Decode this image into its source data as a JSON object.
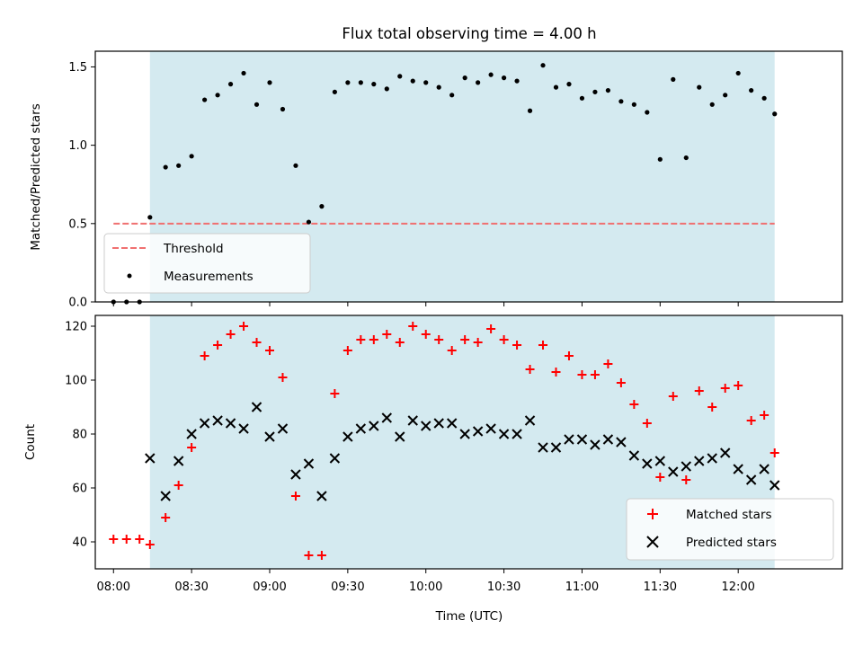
{
  "chart_data": [
    {
      "type": "scatter",
      "title": "Flux total observing time = 4.00 h",
      "xlabel": "",
      "ylabel": "Matched/Predicted stars",
      "xlim": [
        "07:53",
        "12:40"
      ],
      "ylim": [
        0,
        1.6
      ],
      "yticks": [
        0.0,
        0.5,
        1.0,
        1.5
      ],
      "ytick_labels": [
        "0.0",
        "0.5",
        "1.0",
        "1.5"
      ],
      "shaded_region": {
        "x_start": "08:14",
        "x_end": "12:14",
        "color": "#d4eaf0"
      },
      "grid": false,
      "legend_position": "lower-left",
      "series": [
        {
          "name": "Threshold",
          "style": "dashed-line",
          "color": "#f07070",
          "x": [
            "08:00",
            "12:14"
          ],
          "y": [
            0.5,
            0.5
          ]
        },
        {
          "name": "Measurements",
          "style": "dot",
          "color": "#000000",
          "x": [
            "08:00",
            "08:05",
            "08:10",
            "08:14",
            "08:20",
            "08:25",
            "08:30",
            "08:35",
            "08:40",
            "08:45",
            "08:50",
            "08:55",
            "09:00",
            "09:05",
            "09:10",
            "09:15",
            "09:20",
            "09:25",
            "09:30",
            "09:35",
            "09:40",
            "09:45",
            "09:50",
            "09:55",
            "10:00",
            "10:05",
            "10:10",
            "10:15",
            "10:20",
            "10:25",
            "10:30",
            "10:35",
            "10:40",
            "10:45",
            "10:50",
            "10:55",
            "11:00",
            "11:05",
            "11:10",
            "11:15",
            "11:20",
            "11:25",
            "11:30",
            "11:35",
            "11:40",
            "11:45",
            "11:50",
            "11:55",
            "12:00",
            "12:05",
            "12:10",
            "12:14"
          ],
          "y": [
            0.0,
            0.0,
            0.0,
            0.54,
            0.86,
            0.87,
            0.93,
            1.29,
            1.32,
            1.39,
            1.46,
            1.26,
            1.4,
            1.23,
            0.87,
            0.51,
            0.61,
            1.34,
            1.4,
            1.4,
            1.39,
            1.36,
            1.44,
            1.41,
            1.4,
            1.37,
            1.32,
            1.43,
            1.4,
            1.45,
            1.43,
            1.41,
            1.22,
            1.51,
            1.37,
            1.39,
            1.3,
            1.34,
            1.35,
            1.28,
            1.26,
            1.21,
            0.91,
            1.42,
            0.92,
            1.37,
            1.26,
            1.32,
            1.46,
            1.35,
            1.3,
            1.2
          ]
        }
      ]
    },
    {
      "type": "scatter",
      "title": "",
      "xlabel": "Time (UTC)",
      "ylabel": "Count",
      "xlim": [
        "07:53",
        "12:40"
      ],
      "xticks": [
        "08:00",
        "08:30",
        "09:00",
        "09:30",
        "10:00",
        "10:30",
        "11:00",
        "11:30",
        "12:00"
      ],
      "ylim": [
        30,
        124
      ],
      "yticks": [
        40,
        60,
        80,
        100,
        120
      ],
      "shaded_region": {
        "x_start": "08:14",
        "x_end": "12:14",
        "color": "#d4eaf0"
      },
      "grid": false,
      "legend_position": "lower-right",
      "series": [
        {
          "name": "Matched stars",
          "marker": "plus",
          "color": "#ff0000",
          "x": [
            "08:00",
            "08:05",
            "08:10",
            "08:14",
            "08:20",
            "08:25",
            "08:30",
            "08:35",
            "08:40",
            "08:45",
            "08:50",
            "08:55",
            "09:00",
            "09:05",
            "09:10",
            "09:15",
            "09:20",
            "09:25",
            "09:30",
            "09:35",
            "09:40",
            "09:45",
            "09:50",
            "09:55",
            "10:00",
            "10:05",
            "10:10",
            "10:15",
            "10:20",
            "10:25",
            "10:30",
            "10:35",
            "10:40",
            "10:45",
            "10:50",
            "10:55",
            "11:00",
            "11:05",
            "11:10",
            "11:15",
            "11:20",
            "11:25",
            "11:30",
            "11:35",
            "11:40",
            "11:45",
            "11:50",
            "11:55",
            "12:00",
            "12:05",
            "12:10",
            "12:14"
          ],
          "y": [
            41,
            41,
            41,
            39,
            49,
            61,
            75,
            109,
            113,
            117,
            120,
            114,
            111,
            101,
            57,
            35,
            35,
            95,
            111,
            115,
            115,
            117,
            114,
            120,
            117,
            115,
            111,
            115,
            114,
            119,
            115,
            113,
            104,
            113,
            103,
            109,
            102,
            102,
            106,
            99,
            91,
            84,
            64,
            94,
            63,
            96,
            90,
            97,
            98,
            85,
            87,
            73
          ]
        },
        {
          "name": "Predicted stars",
          "marker": "x",
          "color": "#000000",
          "x": [
            "08:14",
            "08:20",
            "08:25",
            "08:30",
            "08:35",
            "08:40",
            "08:45",
            "08:50",
            "08:55",
            "09:00",
            "09:05",
            "09:10",
            "09:15",
            "09:20",
            "09:25",
            "09:30",
            "09:35",
            "09:40",
            "09:45",
            "09:50",
            "09:55",
            "10:00",
            "10:05",
            "10:10",
            "10:15",
            "10:20",
            "10:25",
            "10:30",
            "10:35",
            "10:40",
            "10:45",
            "10:50",
            "10:55",
            "11:00",
            "11:05",
            "11:10",
            "11:15",
            "11:20",
            "11:25",
            "11:30",
            "11:35",
            "11:40",
            "11:45",
            "11:50",
            "11:55",
            "12:00",
            "12:05",
            "12:10",
            "12:14"
          ],
          "y": [
            71,
            57,
            70,
            80,
            84,
            85,
            84,
            82,
            90,
            79,
            82,
            65,
            69,
            57,
            71,
            79,
            82,
            83,
            86,
            79,
            85,
            83,
            84,
            84,
            80,
            81,
            82,
            80,
            80,
            85,
            75,
            75,
            78,
            78,
            76,
            78,
            77,
            72,
            69,
            70,
            66,
            68,
            70,
            71,
            73,
            67,
            63,
            67,
            61
          ]
        }
      ]
    }
  ]
}
